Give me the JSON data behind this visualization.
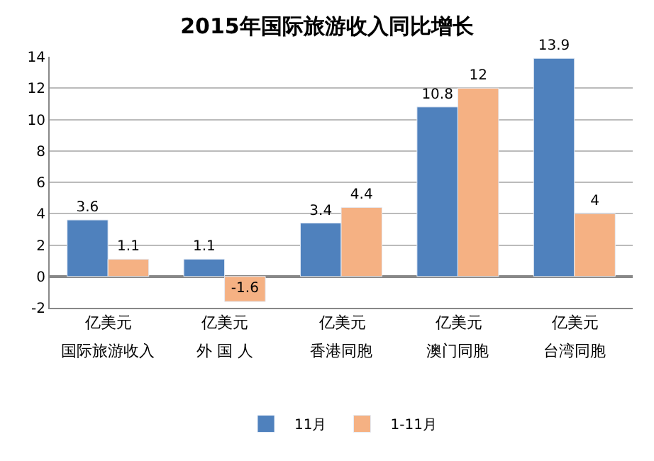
{
  "chart_data": {
    "type": "bar",
    "title": "2015年国际旅游收入同比增长",
    "categories": [
      "国际旅游收入",
      "外 国 人",
      "香港同胞",
      "澳门同胞",
      "台湾同胞"
    ],
    "annotations": [
      "亿美元",
      "亿美元",
      "亿美元",
      "亿美元",
      "亿美元"
    ],
    "series": [
      {
        "name": "11月",
        "color": "#4f81bd",
        "values": [
          3.6,
          1.1,
          3.4,
          10.8,
          13.9
        ]
      },
      {
        "name": "1-11月",
        "color": "#f5b183",
        "values": [
          1.1,
          -1.6,
          4.4,
          12,
          4
        ]
      }
    ],
    "ylim": [
      -2,
      14
    ],
    "yticks": [
      -2,
      0,
      2,
      4,
      6,
      8,
      10,
      12,
      14
    ],
    "grid": "y",
    "legend": "bottom",
    "data_labels": true
  }
}
